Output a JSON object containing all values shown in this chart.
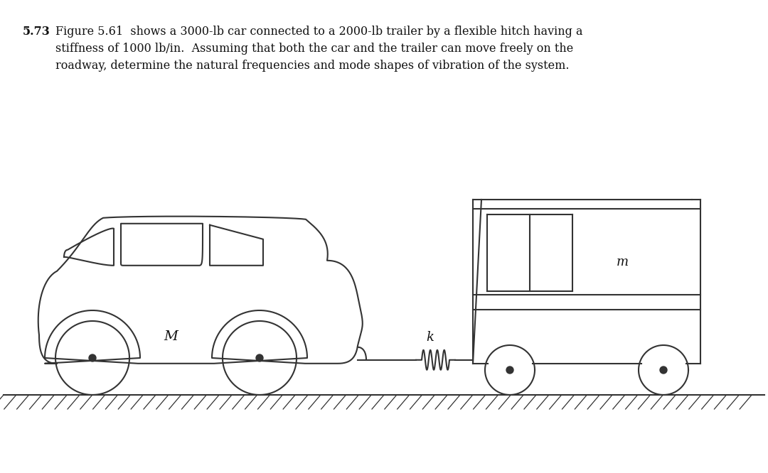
{
  "bg_color": "#ffffff",
  "line_color": "#333333",
  "text_color": "#111111",
  "title_bold": "5.73",
  "figsize": [
    10.8,
    6.66
  ],
  "dpi": 100,
  "label_M": "M",
  "label_k": "k",
  "label_m": "m"
}
